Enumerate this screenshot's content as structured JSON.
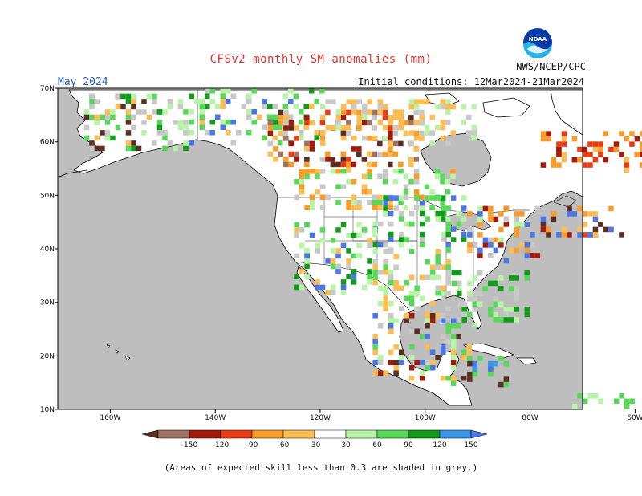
{
  "header": {
    "title": "CFSv2 monthly SM anomalies (mm)",
    "month": "May 2024",
    "initial_conditions": "Initial conditions: 12Mar2024-21Mar2024",
    "agency": "NWS/NCEP/CPC",
    "logo_text": "NOAA"
  },
  "map": {
    "lon_ticks": [
      "160W",
      "140W",
      "120W",
      "100W",
      "80W",
      "60W"
    ],
    "lat_ticks": [
      "70N",
      "60N",
      "50N",
      "40N",
      "30N",
      "20N",
      "10N"
    ],
    "colors": {
      "ocean": "#bebebe",
      "land": "#ffffff",
      "grey_low_skill": "#c8c8c8",
      "coast": "#000000"
    }
  },
  "colorbar": {
    "labels": [
      "-150",
      "-120",
      "-90",
      "-60",
      "-30",
      "30",
      "60",
      "90",
      "120",
      "150"
    ],
    "colors": [
      "#5a2e22",
      "#a07464",
      "#a11a0c",
      "#e73c14",
      "#f89c2c",
      "#fcbd54",
      "#ffffff",
      "#b8f4a8",
      "#58d858",
      "#139c1c",
      "#3a96e6",
      "#4a76e6"
    ]
  },
  "footnote": "(Areas of expected skill less than 0.3 are shaded in grey.)"
}
